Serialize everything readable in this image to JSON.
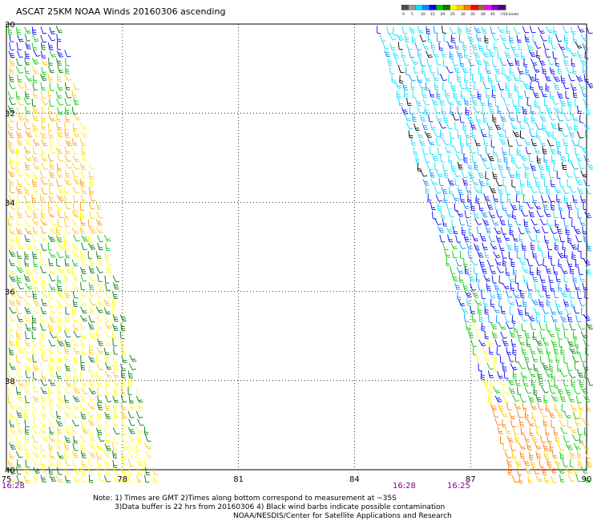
{
  "title": "ASCAT 25KM NOAA Winds 20160306 ascending",
  "colorbar": {
    "labels": [
      "0",
      "5",
      "10",
      "15",
      "20",
      "25",
      "30",
      "35",
      "40",
      "45",
      ">50 knots"
    ],
    "colors": [
      "#4d4d4d",
      "#9a9a9a",
      "#00e0ff",
      "#0090ff",
      "#0000ff",
      "#00c800",
      "#007800",
      "#ffff00",
      "#ffc800",
      "#ff7800",
      "#ff0000",
      "#a06040",
      "#ff00ff",
      "#8000c0",
      "#4b0082"
    ]
  },
  "axes": {
    "lon_labels": [
      "75",
      "78",
      "81",
      "84",
      "87",
      "90"
    ],
    "lat_labels": [
      "30",
      "32",
      "34",
      "36",
      "38",
      "40"
    ]
  },
  "times": [
    "16:28",
    "16:28",
    "16:25"
  ],
  "notes": {
    "line1": "Note: 1) Times are GMT 2)Times along bottom correspond to measurement at ~35S",
    "line2": "3)Data buffer is 22 hrs from 20160306 4) Black wind barbs indicate possible contamination",
    "line3": "NOAA/NESDIS/Center for Satellite Applications and Research"
  },
  "swaths": [
    {
      "name": "west-swath",
      "color_scheme": "yellow-orange-green"
    },
    {
      "name": "east-swath",
      "color_scheme": "cyan-blue-green-orange"
    }
  ]
}
